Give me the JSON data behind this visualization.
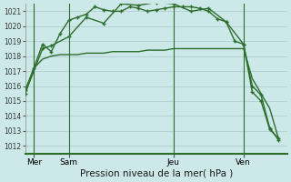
{
  "title": "Pression niveau de la mer( hPa )",
  "background_color": "#cce8e8",
  "grid_color": "#aac8cc",
  "line_color": "#2d6e2d",
  "ylim": [
    1011.5,
    1021.5
  ],
  "yticks": [
    1012,
    1013,
    1014,
    1015,
    1016,
    1017,
    1018,
    1019,
    1020,
    1021
  ],
  "xlim": [
    0,
    30
  ],
  "day_labels": [
    "Mer",
    "Sam",
    "Jeu",
    "Ven"
  ],
  "day_positions": [
    1,
    5,
    17,
    25
  ],
  "series1_x": [
    0,
    1,
    2,
    3,
    4,
    5,
    6,
    7,
    8,
    9,
    10,
    11,
    12,
    13,
    14,
    15,
    16,
    17,
    18,
    19,
    20,
    21,
    22,
    23,
    24,
    25,
    26,
    27,
    28,
    29
  ],
  "series1_y": [
    1015.5,
    1017.2,
    1017.8,
    1018.0,
    1018.1,
    1018.1,
    1018.1,
    1018.2,
    1018.2,
    1018.2,
    1018.3,
    1018.3,
    1018.3,
    1018.3,
    1018.4,
    1018.4,
    1018.4,
    1018.5,
    1018.5,
    1018.5,
    1018.5,
    1018.5,
    1018.5,
    1018.5,
    1018.5,
    1018.5,
    1016.5,
    1015.5,
    1014.5,
    1012.5
  ],
  "series2_x": [
    0,
    1,
    2,
    3,
    4,
    5,
    6,
    7,
    8,
    9,
    10,
    11,
    12,
    13,
    14,
    15,
    16,
    17,
    18,
    19,
    20,
    21,
    22,
    23,
    24,
    25,
    26,
    27,
    28,
    29
  ],
  "series2_y": [
    1015.7,
    1017.2,
    1018.8,
    1018.3,
    1019.5,
    1020.4,
    1020.6,
    1020.8,
    1021.3,
    1021.1,
    1021.0,
    1021.0,
    1021.3,
    1021.2,
    1021.0,
    1021.1,
    1021.2,
    1021.3,
    1021.3,
    1021.3,
    1021.2,
    1021.0,
    1020.5,
    1020.3,
    1019.0,
    1018.8,
    1016.0,
    1015.4,
    1013.2,
    1012.4
  ],
  "series3_x": [
    0,
    2,
    3,
    5,
    7,
    9,
    11,
    13,
    15,
    17,
    19,
    21,
    23,
    25,
    26,
    27,
    28,
    29
  ],
  "series3_y": [
    1015.5,
    1018.5,
    1018.7,
    1019.3,
    1020.6,
    1020.2,
    1021.5,
    1021.4,
    1021.6,
    1021.5,
    1021.0,
    1021.2,
    1020.3,
    1018.8,
    1015.6,
    1015.0,
    1013.1,
    1012.5
  ]
}
